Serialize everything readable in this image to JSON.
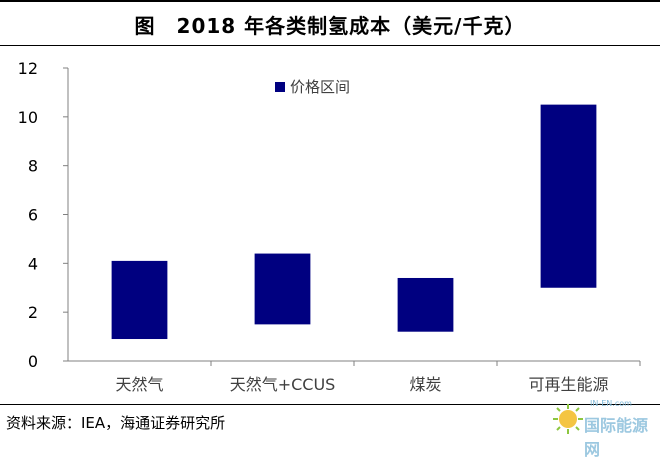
{
  "header": {
    "title": "图　2018 年各类制氢成本（美元/千克）"
  },
  "footer": {
    "source": "资料来源：IEA，海通证券研究所"
  },
  "watermark": {
    "top": "IN-EN.com",
    "text": "国际能源网"
  },
  "colors": {
    "bar": "#000080",
    "axis": "#808080",
    "tick_text": "#000000"
  },
  "chart_data": {
    "type": "bar",
    "subtype": "floating-range",
    "title": "",
    "xlabel": "",
    "ylabel": "",
    "legend": {
      "position": "top-center",
      "label": "价格区间"
    },
    "categories": [
      "天然气",
      "天然气+CCUS",
      "煤炭",
      "可再生能源"
    ],
    "series": [
      {
        "name": "价格区间",
        "low": [
          0.9,
          1.5,
          1.2,
          3.0
        ],
        "high": [
          4.1,
          4.4,
          3.4,
          10.5
        ]
      }
    ],
    "ylim": [
      0,
      12
    ],
    "yticks": [
      0,
      2,
      4,
      6,
      8,
      10,
      12
    ],
    "grid": false
  }
}
